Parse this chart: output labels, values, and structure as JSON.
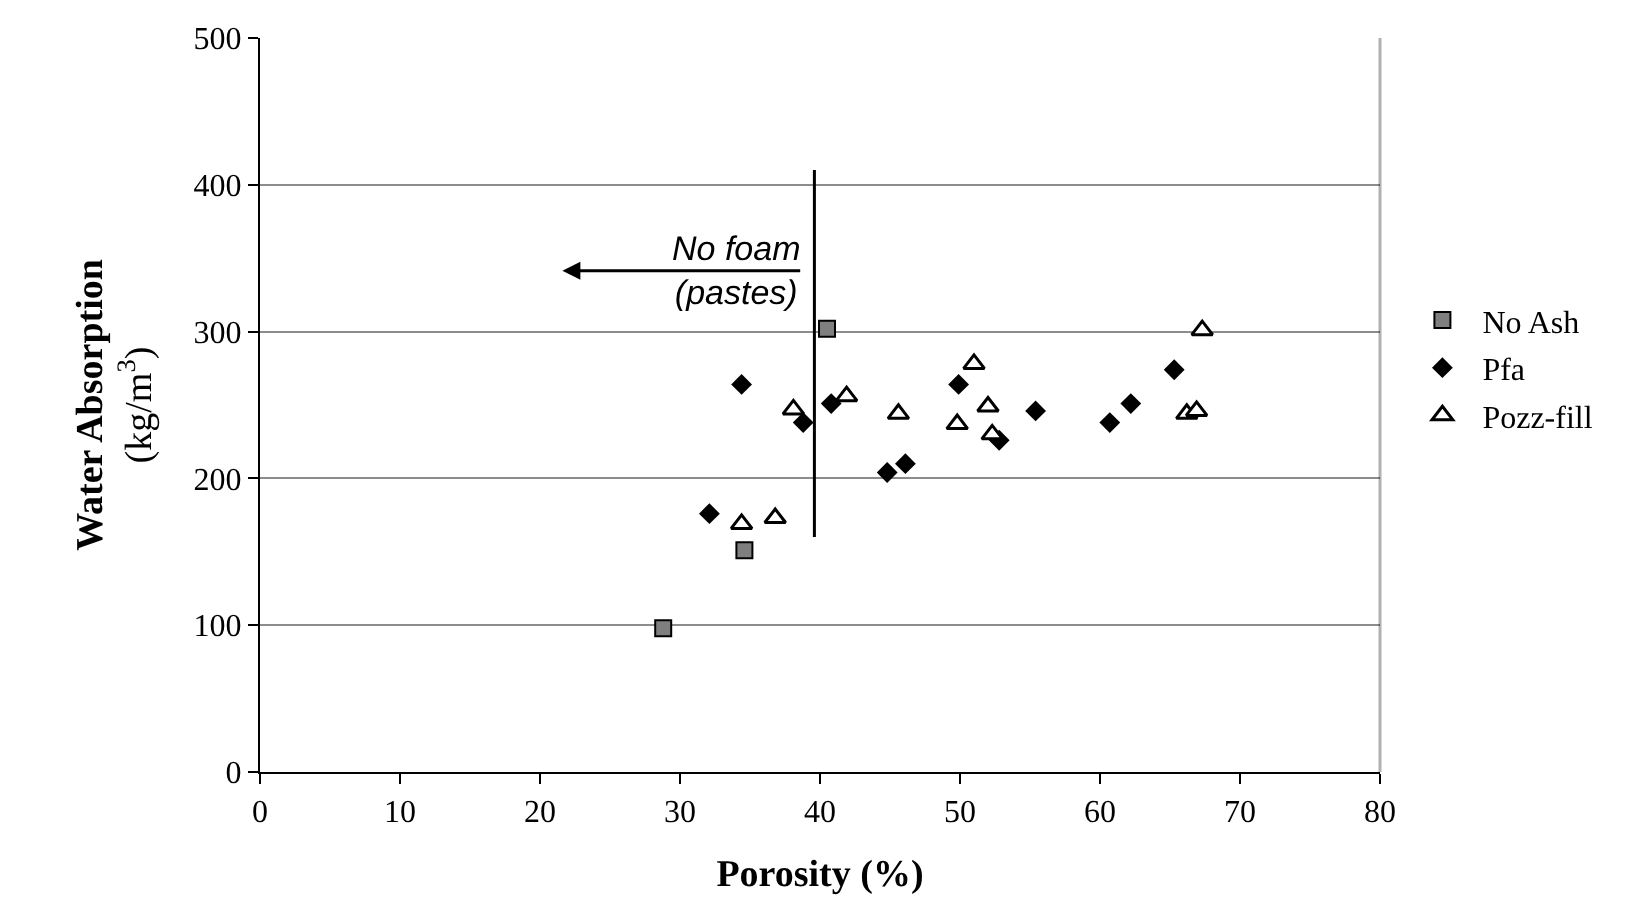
{
  "chart_data": {
    "type": "scatter",
    "xlabel": "Porosity (%)",
    "ylabel": "Water Absorption\n(kg/m$^{3}$)",
    "xlim": [
      0,
      80
    ],
    "xticks": [
      0,
      10,
      20,
      30,
      40,
      50,
      60,
      70,
      80
    ],
    "ylim": [
      0,
      500
    ],
    "yticks": [
      0,
      100,
      200,
      300,
      400,
      500
    ],
    "grid": "y",
    "legend": "right",
    "series": [
      {
        "name": "No Ash",
        "color": "#7f7f7f",
        "marker": "square",
        "x": [
          28.8,
          34.6,
          40.5
        ],
        "values": [
          98,
          151,
          302
        ]
      },
      {
        "name": "Pfa",
        "color": "#000000",
        "marker": "diamond",
        "x": [
          32.1,
          34.4,
          38.8,
          40.8,
          44.8,
          46.1,
          49.9,
          52.8,
          55.4,
          60.7,
          62.2,
          65.3
        ],
        "values": [
          176,
          264,
          238,
          251,
          204,
          210,
          264,
          226,
          246,
          238,
          251,
          274
        ]
      },
      {
        "name": "Pozz-fill",
        "color": "#ffffff",
        "marker": "triangle",
        "x": [
          34.4,
          36.8,
          38.1,
          41.9,
          45.6,
          49.8,
          51.0,
          52.0,
          52.3,
          66.2,
          66.9,
          67.3
        ],
        "values": [
          169,
          173,
          247,
          256,
          244,
          237,
          278,
          249,
          230,
          244,
          246,
          301
        ]
      },
      {
        "type": "line",
        "color": "#000000",
        "marker": "none",
        "x": [
          39.6,
          39.6
        ],
        "values": [
          160,
          410
        ]
      }
    ],
    "annotations": [
      "No foam\n(pastes)"
    ]
  }
}
